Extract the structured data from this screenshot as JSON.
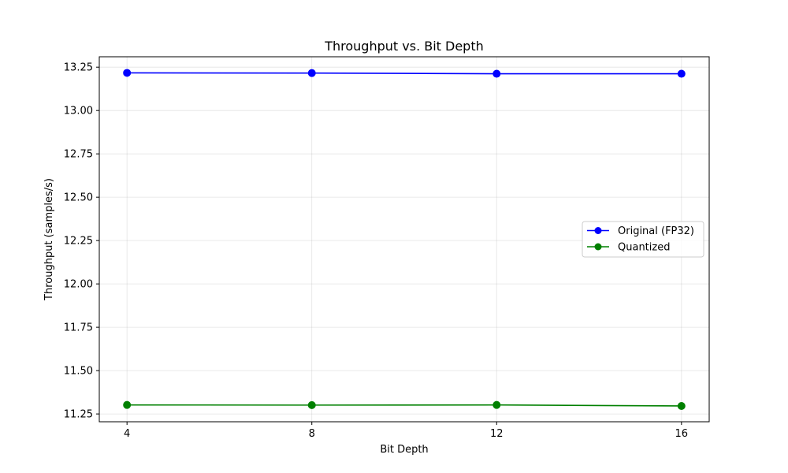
{
  "chart_data": {
    "type": "line",
    "title": "Throughput vs. Bit Depth",
    "xlabel": "Bit Depth",
    "ylabel": "Throughput (samples/s)",
    "x": [
      4,
      8,
      12,
      16
    ],
    "xticks": [
      "4",
      "8",
      "12",
      "16"
    ],
    "xlim": [
      3.4,
      16.6
    ],
    "ylim": [
      11.205,
      13.31
    ],
    "yticks": [
      "11.25",
      "11.50",
      "11.75",
      "12.00",
      "12.25",
      "12.50",
      "12.75",
      "13.00",
      "13.25"
    ],
    "grid": true,
    "legend_position": "center-right",
    "series": [
      {
        "name": "Original (FP32)",
        "color": "#0000ff",
        "marker": "circle",
        "values": [
          13.217,
          13.216,
          13.212,
          13.212
        ]
      },
      {
        "name": "Quantized",
        "color": "#008000",
        "marker": "circle",
        "values": [
          11.302,
          11.301,
          11.302,
          11.296
        ]
      }
    ]
  }
}
